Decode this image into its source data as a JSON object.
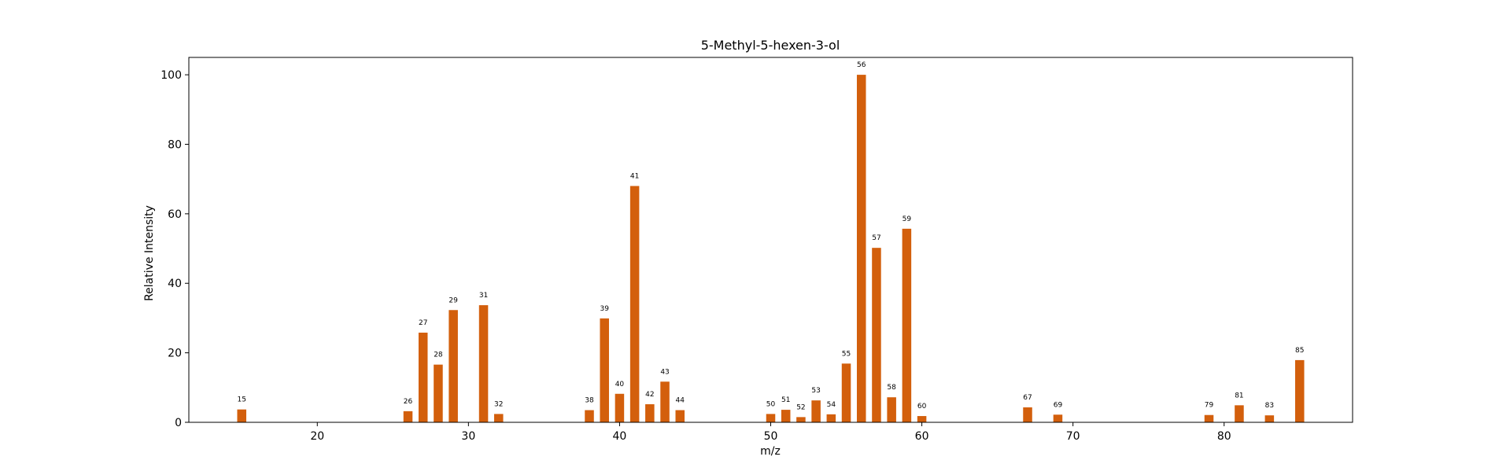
{
  "chart_data": {
    "type": "bar",
    "title": "5-Methyl-5-hexen-3-ol",
    "xlabel": "m/z",
    "ylabel": "Relative Intensity",
    "xlim": [
      11.5,
      88.5
    ],
    "ylim": [
      0,
      105
    ],
    "x_ticks": [
      20,
      30,
      40,
      50,
      60,
      70,
      80
    ],
    "y_ticks": [
      0,
      20,
      40,
      60,
      80,
      100
    ],
    "grid": false,
    "bar_color": "#d35f0c",
    "bar_width": 0.6,
    "x": [
      15,
      26,
      27,
      28,
      29,
      31,
      32,
      38,
      39,
      40,
      41,
      42,
      43,
      44,
      50,
      51,
      52,
      53,
      54,
      55,
      56,
      57,
      58,
      59,
      60,
      67,
      69,
      79,
      81,
      83,
      85
    ],
    "values": [
      3.7,
      3.2,
      25.8,
      16.6,
      32.3,
      33.7,
      2.4,
      3.5,
      29.9,
      8.2,
      68.0,
      5.2,
      11.7,
      3.5,
      2.4,
      3.6,
      1.5,
      6.3,
      2.3,
      16.9,
      100.0,
      50.2,
      7.2,
      55.7,
      1.8,
      4.3,
      2.2,
      2.1,
      4.9,
      2.0,
      17.9
    ],
    "data_labels": [
      "15",
      "26",
      "27",
      "28",
      "29",
      "31",
      "32",
      "38",
      "39",
      "40",
      "41",
      "42",
      "43",
      "44",
      "50",
      "51",
      "52",
      "53",
      "54",
      "55",
      "56",
      "57",
      "58",
      "59",
      "60",
      "67",
      "69",
      "79",
      "81",
      "83",
      "85"
    ]
  }
}
